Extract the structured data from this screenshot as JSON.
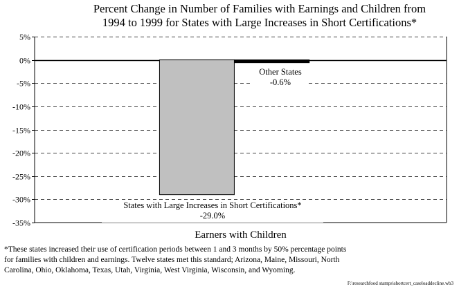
{
  "chart_data": {
    "type": "bar",
    "title_lines": [
      "Percent Change in Number of Families with Earnings and Children from",
      "1994 to 1999 for States with Large Increases in Short Certifications*"
    ],
    "xlabel": "Earners with Children",
    "ylabel": "",
    "ylim": [
      -35,
      5
    ],
    "yticks": [
      5,
      0,
      -5,
      -10,
      -15,
      -20,
      -25,
      -30,
      -35
    ],
    "ytick_labels": [
      "5%",
      "0%",
      "-5%",
      "-10%",
      "-15%",
      "-20%",
      "-25%",
      "-30%",
      "-35%"
    ],
    "grid": "dashed horizontal",
    "series": [
      {
        "label_line1": "States with Large Increases in Short Certifications*",
        "label_line2": "-29.0%",
        "value": -29.0,
        "color": "#c0c0c0"
      },
      {
        "label_line1": "Other States",
        "label_line2": "-0.6%",
        "value": -0.6,
        "color": "#000000"
      }
    ]
  },
  "footnote_lines": [
    "*These states increased their use of certification periods between 1 and 3 months by 50% percentage points",
    "for families with children and earnings. Twelve states met this standard; Arizona, Maine, Missouri, North",
    "Carolina, Ohio, Oklahoma, Texas, Utah, Virginia, West Virginia, Wisconsin, and Wyoming."
  ],
  "file_path": "F:\\researchfood stamps\\shortcert_caseloaddecline.wb3"
}
